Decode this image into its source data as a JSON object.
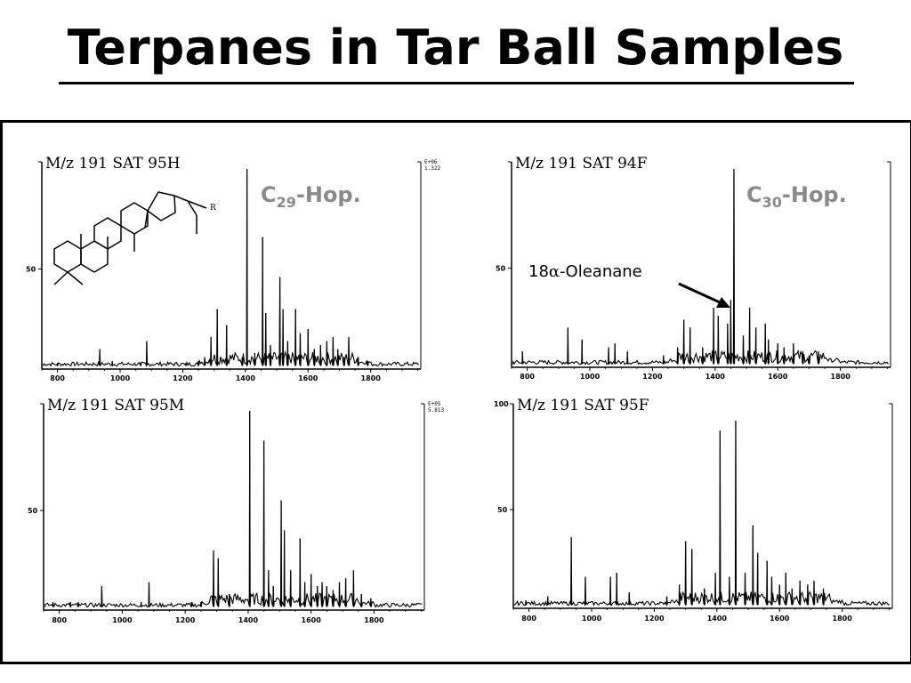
{
  "title": "Terpanes in Tar Ball Samples",
  "annotations": {
    "c29_label": "C",
    "c29_sub": "29",
    "c29_suffix": "-Hop.",
    "c30_label": "C",
    "c30_sub": "30",
    "c30_suffix": "-Hop.",
    "oleanane_prefix": "18",
    "oleanane_alpha": "α",
    "oleanane_suffix": "-Oleanane",
    "structure_r": "R"
  },
  "colors": {
    "title": "#000000",
    "hopane_label": "#8a8a8a",
    "trace": "#000000"
  },
  "icons": [
    "hopane-structure-drawing",
    "arrow-to-oleanane-peak"
  ],
  "chart_data": [
    {
      "type": "line",
      "sample": "M/z 191 SAT 95H",
      "scale_text": [
        "E+06",
        "1.322"
      ],
      "x_ticks": [
        "800",
        "1000",
        "1200",
        "1400",
        "1600",
        "1800"
      ],
      "y_ticks": [
        "50"
      ],
      "xlim": [
        750,
        1960
      ],
      "ylim": [
        0,
        100
      ],
      "peaks": [
        [
          800,
          3
        ],
        [
          935,
          10
        ],
        [
          975,
          4
        ],
        [
          1065,
          3
        ],
        [
          1085,
          14
        ],
        [
          1210,
          3
        ],
        [
          1250,
          4
        ],
        [
          1270,
          6
        ],
        [
          1290,
          16
        ],
        [
          1310,
          30
        ],
        [
          1340,
          22
        ],
        [
          1390,
          6
        ],
        [
          1405,
          100
        ],
        [
          1430,
          8
        ],
        [
          1455,
          66
        ],
        [
          1465,
          28
        ],
        [
          1480,
          12
        ],
        [
          1510,
          46
        ],
        [
          1520,
          30
        ],
        [
          1535,
          14
        ],
        [
          1560,
          30
        ],
        [
          1575,
          18
        ],
        [
          1600,
          20
        ],
        [
          1620,
          10
        ],
        [
          1640,
          12
        ],
        [
          1660,
          14
        ],
        [
          1680,
          16
        ],
        [
          1695,
          10
        ],
        [
          1715,
          6
        ],
        [
          1730,
          16
        ],
        [
          1760,
          6
        ],
        [
          1790,
          4
        ]
      ]
    },
    {
      "type": "line",
      "sample": "M/z 191 SAT 94F",
      "scale_text": [],
      "x_ticks": [
        "800",
        "1000",
        "1200",
        "1400",
        "1600",
        "1800"
      ],
      "y_ticks": [
        "50"
      ],
      "xlim": [
        750,
        1960
      ],
      "ylim": [
        0,
        100
      ],
      "peaks": [
        [
          785,
          8
        ],
        [
          930,
          20
        ],
        [
          975,
          14
        ],
        [
          1060,
          10
        ],
        [
          1080,
          12
        ],
        [
          1120,
          8
        ],
        [
          1235,
          6
        ],
        [
          1280,
          10
        ],
        [
          1300,
          24
        ],
        [
          1320,
          20
        ],
        [
          1360,
          10
        ],
        [
          1395,
          30
        ],
        [
          1410,
          26
        ],
        [
          1440,
          22
        ],
        [
          1450,
          34
        ],
        [
          1460,
          100
        ],
        [
          1490,
          16
        ],
        [
          1510,
          30
        ],
        [
          1530,
          20
        ],
        [
          1560,
          22
        ],
        [
          1570,
          14
        ],
        [
          1600,
          12
        ],
        [
          1620,
          10
        ],
        [
          1650,
          12
        ],
        [
          1680,
          8
        ],
        [
          1700,
          6
        ],
        [
          1730,
          8
        ]
      ]
    },
    {
      "type": "line",
      "sample": "M/z 191 SAT 95M",
      "scale_text": [
        "E+05",
        "5.813"
      ],
      "x_ticks": [
        "800",
        "1000",
        "1200",
        "1400",
        "1600",
        "1800"
      ],
      "y_ticks": [
        "50"
      ],
      "xlim": [
        750,
        1960
      ],
      "ylim": [
        0,
        100
      ],
      "peaks": [
        [
          780,
          4
        ],
        [
          835,
          4
        ],
        [
          860,
          4
        ],
        [
          935,
          12
        ],
        [
          1060,
          4
        ],
        [
          1085,
          14
        ],
        [
          1220,
          4
        ],
        [
          1250,
          4
        ],
        [
          1290,
          30
        ],
        [
          1305,
          26
        ],
        [
          1340,
          8
        ],
        [
          1405,
          100
        ],
        [
          1450,
          85
        ],
        [
          1465,
          20
        ],
        [
          1480,
          12
        ],
        [
          1505,
          55
        ],
        [
          1515,
          40
        ],
        [
          1535,
          20
        ],
        [
          1565,
          36
        ],
        [
          1580,
          14
        ],
        [
          1600,
          18
        ],
        [
          1620,
          12
        ],
        [
          1635,
          14
        ],
        [
          1650,
          12
        ],
        [
          1670,
          10
        ],
        [
          1690,
          14
        ],
        [
          1710,
          16
        ],
        [
          1735,
          20
        ],
        [
          1760,
          8
        ],
        [
          1790,
          6
        ]
      ]
    },
    {
      "type": "line",
      "sample": "M/z 191 SAT 95F",
      "scale_text": [],
      "y_top_label": "100",
      "x_ticks": [
        "800",
        "1000",
        "1200",
        "1400",
        "1600",
        "1800"
      ],
      "y_ticks": [
        "50"
      ],
      "xlim": [
        750,
        1960
      ],
      "ylim": [
        0,
        100
      ],
      "peaks": [
        [
          790,
          4
        ],
        [
          860,
          6
        ],
        [
          935,
          36
        ],
        [
          980,
          16
        ],
        [
          1060,
          16
        ],
        [
          1080,
          18
        ],
        [
          1120,
          8
        ],
        [
          1240,
          6
        ],
        [
          1280,
          12
        ],
        [
          1300,
          34
        ],
        [
          1320,
          30
        ],
        [
          1360,
          10
        ],
        [
          1395,
          18
        ],
        [
          1410,
          90
        ],
        [
          1440,
          16
        ],
        [
          1460,
          95
        ],
        [
          1490,
          18
        ],
        [
          1515,
          42
        ],
        [
          1530,
          28
        ],
        [
          1560,
          24
        ],
        [
          1575,
          16
        ],
        [
          1600,
          12
        ],
        [
          1620,
          18
        ],
        [
          1640,
          10
        ],
        [
          1665,
          14
        ],
        [
          1690,
          12
        ],
        [
          1710,
          14
        ],
        [
          1740,
          10
        ]
      ]
    }
  ]
}
